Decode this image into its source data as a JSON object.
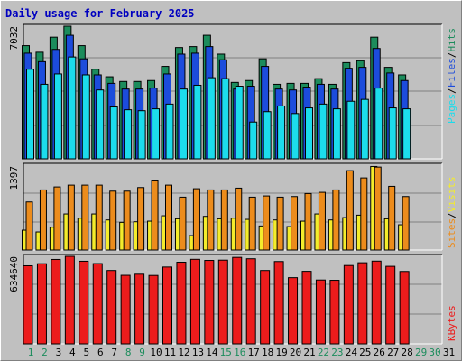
{
  "title": "Daily usage for February 2025",
  "colors": {
    "hits": "#1c8c5c",
    "files": "#1c4cdc",
    "pages": "#1cdcec",
    "visits": "#f4ec2c",
    "sites": "#ec8c1c",
    "kbytes": "#ec1c1c",
    "weekday_label": "#000000",
    "weekend_label": "#1c8c5c"
  },
  "chart_data": [
    {
      "type": "bar",
      "panel": "hits-files-pages",
      "ymax_label": "7032",
      "ylim": [
        0,
        7032
      ],
      "categories": [
        "1",
        "2",
        "3",
        "4",
        "5",
        "6",
        "7",
        "8",
        "9",
        "10",
        "11",
        "12",
        "13",
        "14",
        "15",
        "16",
        "17",
        "18",
        "19",
        "20",
        "21",
        "22",
        "23",
        "24",
        "25",
        "26",
        "27",
        "28"
      ],
      "series": [
        {
          "name": "Hits",
          "values": [
            6000,
            5650,
            6450,
            7032,
            6000,
            4750,
            4350,
            4100,
            4100,
            4150,
            4900,
            5900,
            5950,
            6550,
            5550,
            4050,
            4150,
            5300,
            3950,
            4000,
            4000,
            4250,
            3950,
            5100,
            5200,
            6450,
            4850,
            4450
          ]
        },
        {
          "name": "Files",
          "values": [
            5600,
            5150,
            5800,
            6550,
            5300,
            4450,
            4000,
            3700,
            3700,
            3750,
            4500,
            5550,
            5600,
            5950,
            5250,
            3700,
            3850,
            4900,
            3700,
            3650,
            3800,
            3950,
            3700,
            4800,
            4850,
            5850,
            4550,
            4150
          ]
        },
        {
          "name": "Pages",
          "values": [
            4750,
            3950,
            4500,
            5400,
            4450,
            3650,
            2750,
            2600,
            2550,
            2650,
            2900,
            3700,
            3900,
            4300,
            4250,
            3850,
            1950,
            2500,
            2800,
            2400,
            2700,
            2900,
            2650,
            3050,
            3150,
            3750,
            2700,
            2650
          ]
        }
      ],
      "legend": [
        "Pages",
        "/",
        "Files",
        "/",
        "Hits"
      ]
    },
    {
      "type": "bar",
      "panel": "visits-sites",
      "ymax_label": "1397",
      "ylim": [
        0,
        1397
      ],
      "categories": [
        "1",
        "2",
        "3",
        "4",
        "5",
        "6",
        "7",
        "8",
        "9",
        "10",
        "11",
        "12",
        "13",
        "14",
        "15",
        "16",
        "17",
        "18",
        "19",
        "20",
        "21",
        "22",
        "23",
        "24",
        "25",
        "26",
        "27",
        "28"
      ],
      "series": [
        {
          "name": "Sites",
          "values": [
            800,
            1000,
            1050,
            1080,
            1080,
            1080,
            980,
            980,
            1040,
            1150,
            1080,
            880,
            1020,
            1000,
            1000,
            1030,
            880,
            900,
            880,
            890,
            940,
            960,
            1000,
            1320,
            1200,
            1380,
            1060,
            890
          ]
        },
        {
          "name": "Visits",
          "values": [
            330,
            300,
            380,
            600,
            530,
            600,
            500,
            460,
            470,
            480,
            570,
            520,
            240,
            560,
            520,
            530,
            510,
            400,
            500,
            390,
            480,
            600,
            500,
            540,
            580,
            1390,
            520,
            420
          ]
        }
      ],
      "legend": [
        "Sites",
        "/",
        "Visits"
      ]
    },
    {
      "type": "bar",
      "panel": "kbytes",
      "ymax_label": "634640",
      "ylim": [
        0,
        634640
      ],
      "categories": [
        "1",
        "2",
        "3",
        "4",
        "5",
        "6",
        "7",
        "8",
        "9",
        "10",
        "11",
        "12",
        "13",
        "14",
        "15",
        "16",
        "17",
        "18",
        "19",
        "20",
        "21",
        "22",
        "23",
        "24",
        "25",
        "26",
        "27",
        "28"
      ],
      "series": [
        {
          "name": "KBytes",
          "values": [
            566000,
            581000,
            612000,
            634640,
            599000,
            582000,
            532000,
            497000,
            505000,
            496000,
            557000,
            592000,
            613000,
            605000,
            607000,
            627000,
            617000,
            532000,
            597000,
            480000,
            526000,
            463000,
            461000,
            568000,
            588000,
            600000,
            562000,
            525000
          ]
        }
      ],
      "legend": [
        "KBytes"
      ]
    }
  ],
  "x_axis": {
    "days": [
      "1",
      "2",
      "3",
      "4",
      "5",
      "6",
      "7",
      "8",
      "9",
      "10",
      "11",
      "12",
      "13",
      "14",
      "15",
      "16",
      "17",
      "18",
      "19",
      "20",
      "21",
      "22",
      "23",
      "24",
      "25",
      "26",
      "27",
      "28",
      "29",
      "30",
      "31"
    ],
    "weekend": [
      1,
      8,
      15,
      22,
      29
    ],
    "weekend_sat": [
      2,
      9,
      16,
      23,
      30
    ],
    "unused": [
      29,
      30,
      31
    ]
  }
}
